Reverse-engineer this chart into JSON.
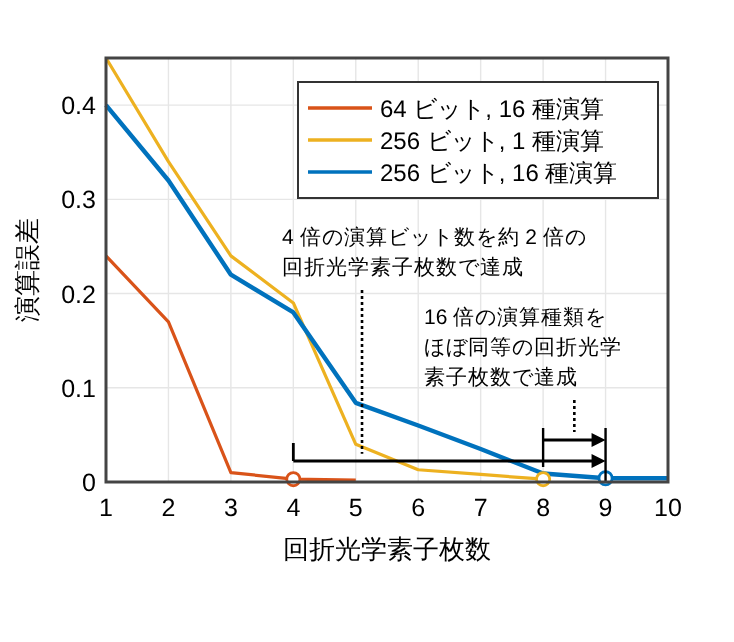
{
  "chart_data": {
    "type": "line",
    "xlabel": "回折光学素子枚数",
    "ylabel": "演算誤差",
    "xlim": [
      1,
      10
    ],
    "ylim": [
      0,
      0.45
    ],
    "xticks": [
      1,
      2,
      3,
      4,
      5,
      6,
      7,
      8,
      9,
      10
    ],
    "yticks": [
      0,
      0.1,
      0.2,
      0.3,
      0.4
    ],
    "grid": true,
    "legend": "top right",
    "marker": "none",
    "line_style": "solid",
    "series": [
      {
        "name": "64 ビット, 16 種演算",
        "color": "#d95319",
        "x": [
          1,
          2,
          3,
          4,
          5
        ],
        "values": [
          0.24,
          0.17,
          0.01,
          0.003,
          0.002
        ]
      },
      {
        "name": "256 ビット, 1 種演算",
        "color": "#edb120",
        "x": [
          1,
          2,
          3,
          4,
          5,
          6,
          7,
          8
        ],
        "values": [
          0.45,
          0.34,
          0.24,
          0.19,
          0.04,
          0.013,
          0.008,
          0.003
        ]
      },
      {
        "name": "256 ビット, 16 種演算",
        "color": "#0072bd",
        "x": [
          1,
          2,
          3,
          4,
          5,
          6,
          7,
          8,
          9,
          10
        ],
        "values": [
          0.4,
          0.32,
          0.22,
          0.18,
          0.084,
          0.06,
          0.035,
          0.009,
          0.004,
          0.004
        ]
      },
      {
        "type": "scatter",
        "marker": "circle",
        "color": "#d95319",
        "x": [
          4
        ],
        "values": [
          0.003
        ]
      },
      {
        "type": "scatter",
        "marker": "circle",
        "color": "#edb120",
        "x": [
          8
        ],
        "values": [
          0.003
        ]
      },
      {
        "type": "scatter",
        "marker": "circle",
        "color": "#0072bd",
        "x": [
          9
        ],
        "values": [
          0.004
        ]
      }
    ],
    "annotations": [
      {
        "text": "4 倍の演算ビット数を約 2 倍の回折光学素子枚数で達成",
        "x": 5.1,
        "y": 0.03
      },
      "16 倍の演算種類をほぼ同等の回折光学素子枚数で達成"
    ]
  }
}
